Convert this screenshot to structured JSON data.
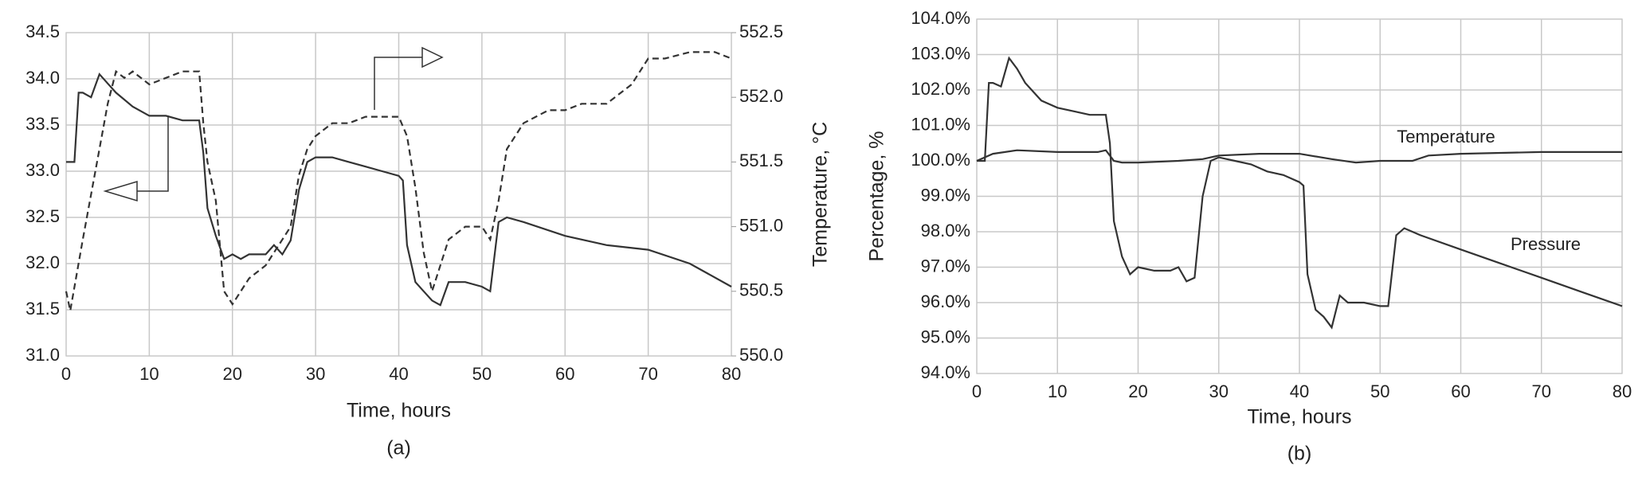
{
  "chart_data": [
    {
      "type": "line",
      "xlabel": "Time, hours",
      "y2label": "Temperature, °C",
      "caption": "(a)",
      "xlim": [
        0,
        80
      ],
      "xticks": [
        0,
        10,
        20,
        30,
        40,
        50,
        60,
        70,
        80
      ],
      "ylim": [
        31,
        34.5
      ],
      "yticks": [
        {
          "value": 31,
          "label": "31.0"
        },
        31.5,
        {
          "value": 32,
          "label": "32.0"
        },
        32.5,
        {
          "value": 33,
          "label": "33.0"
        },
        33.5,
        {
          "value": 34,
          "label": "34.0"
        },
        34.5
      ],
      "y2lim": [
        550,
        552.5
      ],
      "y2ticks": [
        {
          "value": 550,
          "label": "550.0"
        },
        550.5,
        {
          "value": 551,
          "label": "551.0"
        },
        551.5,
        {
          "value": 552,
          "label": "552.0"
        },
        552.5
      ],
      "grid": true,
      "series": [
        {
          "color": "#333333",
          "line_style": "solid",
          "x": [
            0,
            1,
            1.5,
            2,
            3,
            4,
            5,
            6,
            8,
            10,
            12,
            14,
            16,
            16.5,
            17,
            18,
            19,
            20,
            21,
            22,
            24,
            25,
            26,
            27,
            28,
            29,
            30,
            32,
            34,
            36,
            38,
            40,
            40.5,
            41,
            42,
            43,
            44,
            45,
            46,
            48,
            50,
            51,
            52,
            53,
            55,
            60,
            65,
            70,
            75,
            80
          ],
          "values": [
            33.1,
            33.1,
            33.85,
            33.85,
            33.8,
            34.05,
            33.95,
            33.85,
            33.7,
            33.6,
            33.6,
            33.55,
            33.55,
            33.2,
            32.6,
            32.3,
            32.05,
            32.1,
            32.05,
            32.1,
            32.1,
            32.2,
            32.1,
            32.25,
            32.8,
            33.1,
            33.15,
            33.15,
            33.1,
            33.05,
            33.0,
            32.95,
            32.9,
            32.2,
            31.8,
            31.7,
            31.6,
            31.55,
            31.8,
            31.8,
            31.75,
            31.7,
            32.45,
            32.5,
            32.45,
            32.3,
            32.2,
            32.15,
            32.0,
            31.75
          ]
        },
        {
          "color": "#333333",
          "line_style": "dashed",
          "axis": "y2",
          "x": [
            0,
            0.5,
            2,
            4,
            5,
            6,
            7,
            8,
            10,
            12,
            14,
            16,
            16.5,
            17,
            18,
            19,
            20,
            21,
            22,
            24,
            25,
            26,
            27,
            28,
            29,
            30,
            32,
            34,
            36,
            38,
            40,
            41,
            42,
            43,
            44,
            45,
            46,
            48,
            50,
            51,
            52,
            53,
            55,
            58,
            60,
            62,
            65,
            67,
            68,
            70,
            72,
            75,
            78,
            80
          ],
          "values": [
            550.5,
            550.35,
            550.9,
            551.6,
            551.95,
            552.2,
            552.15,
            552.2,
            552.1,
            552.15,
            552.2,
            552.2,
            551.8,
            551.5,
            551.2,
            550.5,
            550.4,
            550.5,
            550.6,
            550.7,
            550.8,
            550.9,
            551.0,
            551.4,
            551.6,
            551.7,
            551.8,
            551.8,
            551.85,
            551.85,
            551.85,
            551.7,
            551.3,
            550.8,
            550.5,
            550.7,
            550.9,
            551.0,
            551.0,
            550.9,
            551.2,
            551.6,
            551.8,
            551.9,
            551.9,
            551.95,
            551.95,
            552.05,
            552.1,
            552.3,
            552.3,
            552.35,
            552.35,
            552.3
          ]
        }
      ]
    },
    {
      "type": "line",
      "xlabel": "Time, hours",
      "ylabel": "Percentage, %",
      "caption": "(b)",
      "xlim": [
        0,
        80
      ],
      "xticks": [
        0,
        10,
        20,
        30,
        40,
        50,
        60,
        70,
        80
      ],
      "ylim": [
        94,
        104
      ],
      "yticks": [
        {
          "value": 94,
          "label": "94.0%"
        },
        {
          "value": 95,
          "label": "95.0%"
        },
        {
          "value": 96,
          "label": "96.0%"
        },
        {
          "value": 97,
          "label": "97.0%"
        },
        {
          "value": 98,
          "label": "98.0%"
        },
        {
          "value": 99,
          "label": "99.0%"
        },
        {
          "value": 100,
          "label": "100.0%"
        },
        {
          "value": 101,
          "label": "101.0%"
        },
        {
          "value": 102,
          "label": "102.0%"
        },
        {
          "value": 103,
          "label": "103.0%"
        },
        {
          "value": 104,
          "label": "104.0%"
        }
      ],
      "grid": true,
      "annotations": [
        "Temperature",
        "Pressure"
      ],
      "series": [
        {
          "color": "#333333",
          "line_style": "solid",
          "x": [
            0,
            2,
            5,
            10,
            15,
            16,
            17,
            18,
            20,
            25,
            28,
            30,
            35,
            40,
            44,
            47,
            50,
            54,
            56,
            60,
            70,
            80
          ],
          "values": [
            100.0,
            100.2,
            100.3,
            100.25,
            100.25,
            100.3,
            100.0,
            99.95,
            99.95,
            100.0,
            100.05,
            100.15,
            100.2,
            100.2,
            100.05,
            99.95,
            100.0,
            100.0,
            100.15,
            100.2,
            100.25,
            100.25
          ]
        },
        {
          "color": "#333333",
          "line_style": "solid",
          "x": [
            0,
            1,
            1.5,
            2,
            3,
            4,
            5,
            6,
            8,
            10,
            12,
            14,
            16,
            16.5,
            17,
            18,
            19,
            20,
            22,
            24,
            25,
            26,
            27,
            28,
            29,
            30,
            32,
            34,
            36,
            38,
            40,
            40.5,
            41,
            42,
            43,
            44,
            45,
            46,
            48,
            50,
            51,
            52,
            53,
            55,
            60,
            65,
            70,
            75,
            80
          ],
          "values": [
            100.0,
            100.0,
            102.2,
            102.2,
            102.1,
            102.9,
            102.6,
            102.2,
            101.7,
            101.5,
            101.4,
            101.3,
            101.3,
            100.5,
            98.3,
            97.3,
            96.8,
            97.0,
            96.9,
            96.9,
            97.0,
            96.6,
            96.7,
            99.0,
            100.0,
            100.1,
            100.0,
            99.9,
            99.7,
            99.6,
            99.4,
            99.3,
            96.8,
            95.8,
            95.6,
            95.3,
            96.2,
            96.0,
            96.0,
            95.9,
            95.9,
            97.9,
            98.1,
            97.9,
            97.5,
            97.1,
            96.7,
            96.3,
            95.9
          ]
        }
      ]
    }
  ]
}
